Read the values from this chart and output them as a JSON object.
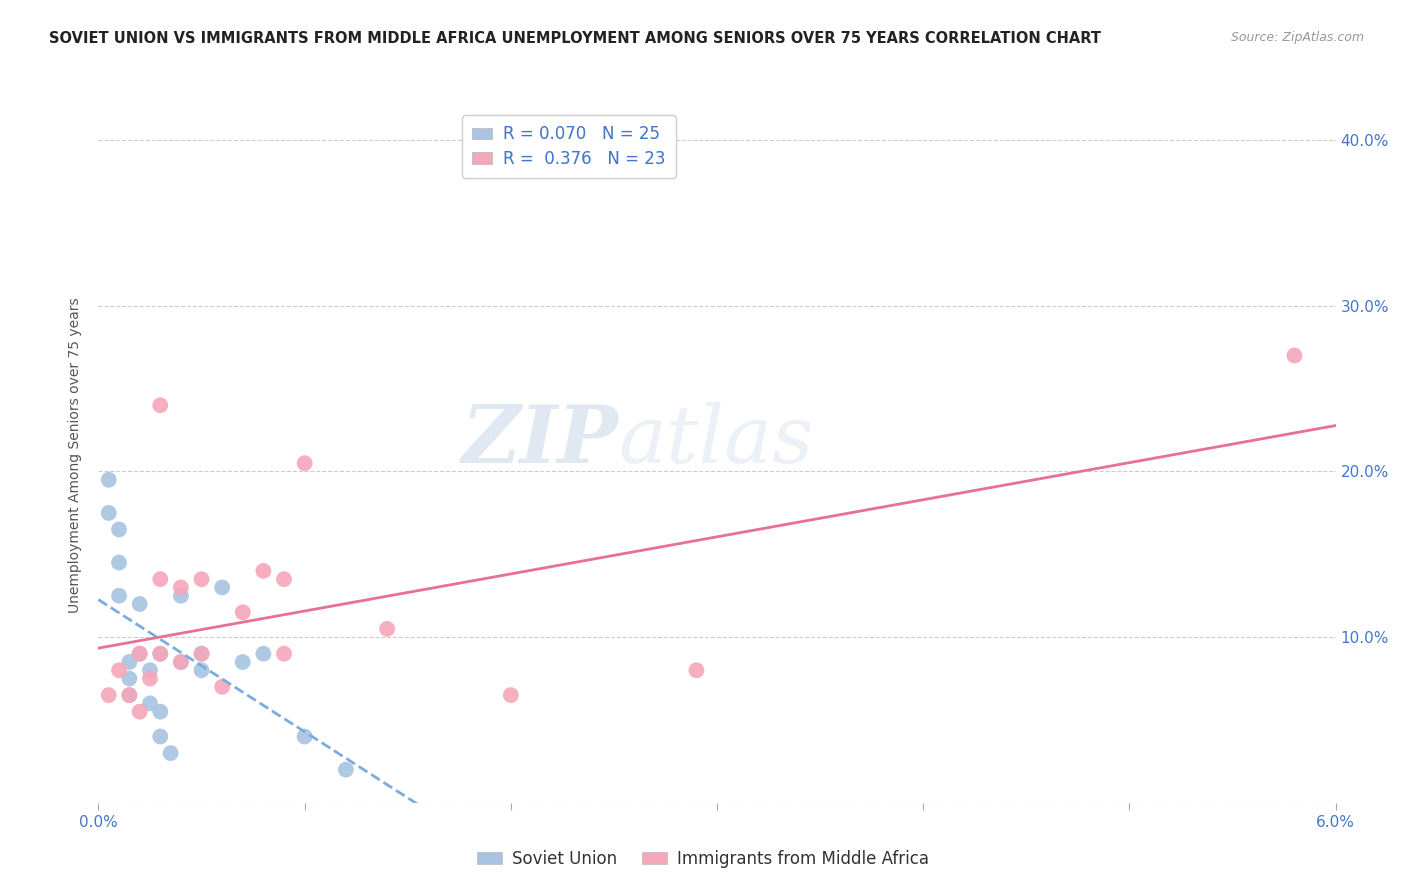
{
  "title": "SOVIET UNION VS IMMIGRANTS FROM MIDDLE AFRICA UNEMPLOYMENT AMONG SENIORS OVER 75 YEARS CORRELATION CHART",
  "source": "Source: ZipAtlas.com",
  "ylabel": "Unemployment Among Seniors over 75 years",
  "xlim": [
    0.0,
    0.06
  ],
  "ylim": [
    0.0,
    0.42
  ],
  "yticks": [
    0.0,
    0.1,
    0.2,
    0.3,
    0.4
  ],
  "ytick_labels": [
    "",
    "10.0%",
    "20.0%",
    "30.0%",
    "40.0%"
  ],
  "soviet_union_x": [
    0.0005,
    0.0005,
    0.001,
    0.001,
    0.001,
    0.0015,
    0.0015,
    0.0015,
    0.002,
    0.002,
    0.0025,
    0.0025,
    0.003,
    0.003,
    0.003,
    0.0035,
    0.004,
    0.004,
    0.005,
    0.005,
    0.006,
    0.007,
    0.008,
    0.01,
    0.012
  ],
  "soviet_union_y": [
    0.195,
    0.175,
    0.165,
    0.145,
    0.125,
    0.085,
    0.075,
    0.065,
    0.12,
    0.09,
    0.08,
    0.06,
    0.09,
    0.055,
    0.04,
    0.03,
    0.125,
    0.085,
    0.09,
    0.08,
    0.13,
    0.085,
    0.09,
    0.04,
    0.02
  ],
  "middle_africa_x": [
    0.0005,
    0.001,
    0.0015,
    0.002,
    0.002,
    0.0025,
    0.003,
    0.003,
    0.003,
    0.004,
    0.004,
    0.005,
    0.005,
    0.006,
    0.007,
    0.008,
    0.009,
    0.009,
    0.01,
    0.014,
    0.02,
    0.029,
    0.058
  ],
  "middle_africa_y": [
    0.065,
    0.08,
    0.065,
    0.09,
    0.055,
    0.075,
    0.24,
    0.135,
    0.09,
    0.13,
    0.085,
    0.09,
    0.135,
    0.07,
    0.115,
    0.14,
    0.135,
    0.09,
    0.205,
    0.105,
    0.065,
    0.08,
    0.27
  ],
  "soviet_R": 0.07,
  "soviet_N": 25,
  "middle_africa_R": 0.376,
  "middle_africa_N": 23,
  "soviet_color": "#a8c4e0",
  "middle_africa_color": "#f4a7b9",
  "soviet_line_color": "#7aaddd",
  "middle_africa_line_color": "#e87090",
  "legend_label_soviet": "Soviet Union",
  "legend_label_africa": "Immigrants from Middle Africa",
  "watermark_zip": "ZIP",
  "watermark_atlas": "atlas",
  "background_color": "#ffffff",
  "grid_color": "#cccccc",
  "xtick_positions": [
    0.0,
    0.01,
    0.02,
    0.03,
    0.04,
    0.05,
    0.06
  ],
  "label_color_blue": "#4477cc",
  "label_color_dark": "#333333"
}
